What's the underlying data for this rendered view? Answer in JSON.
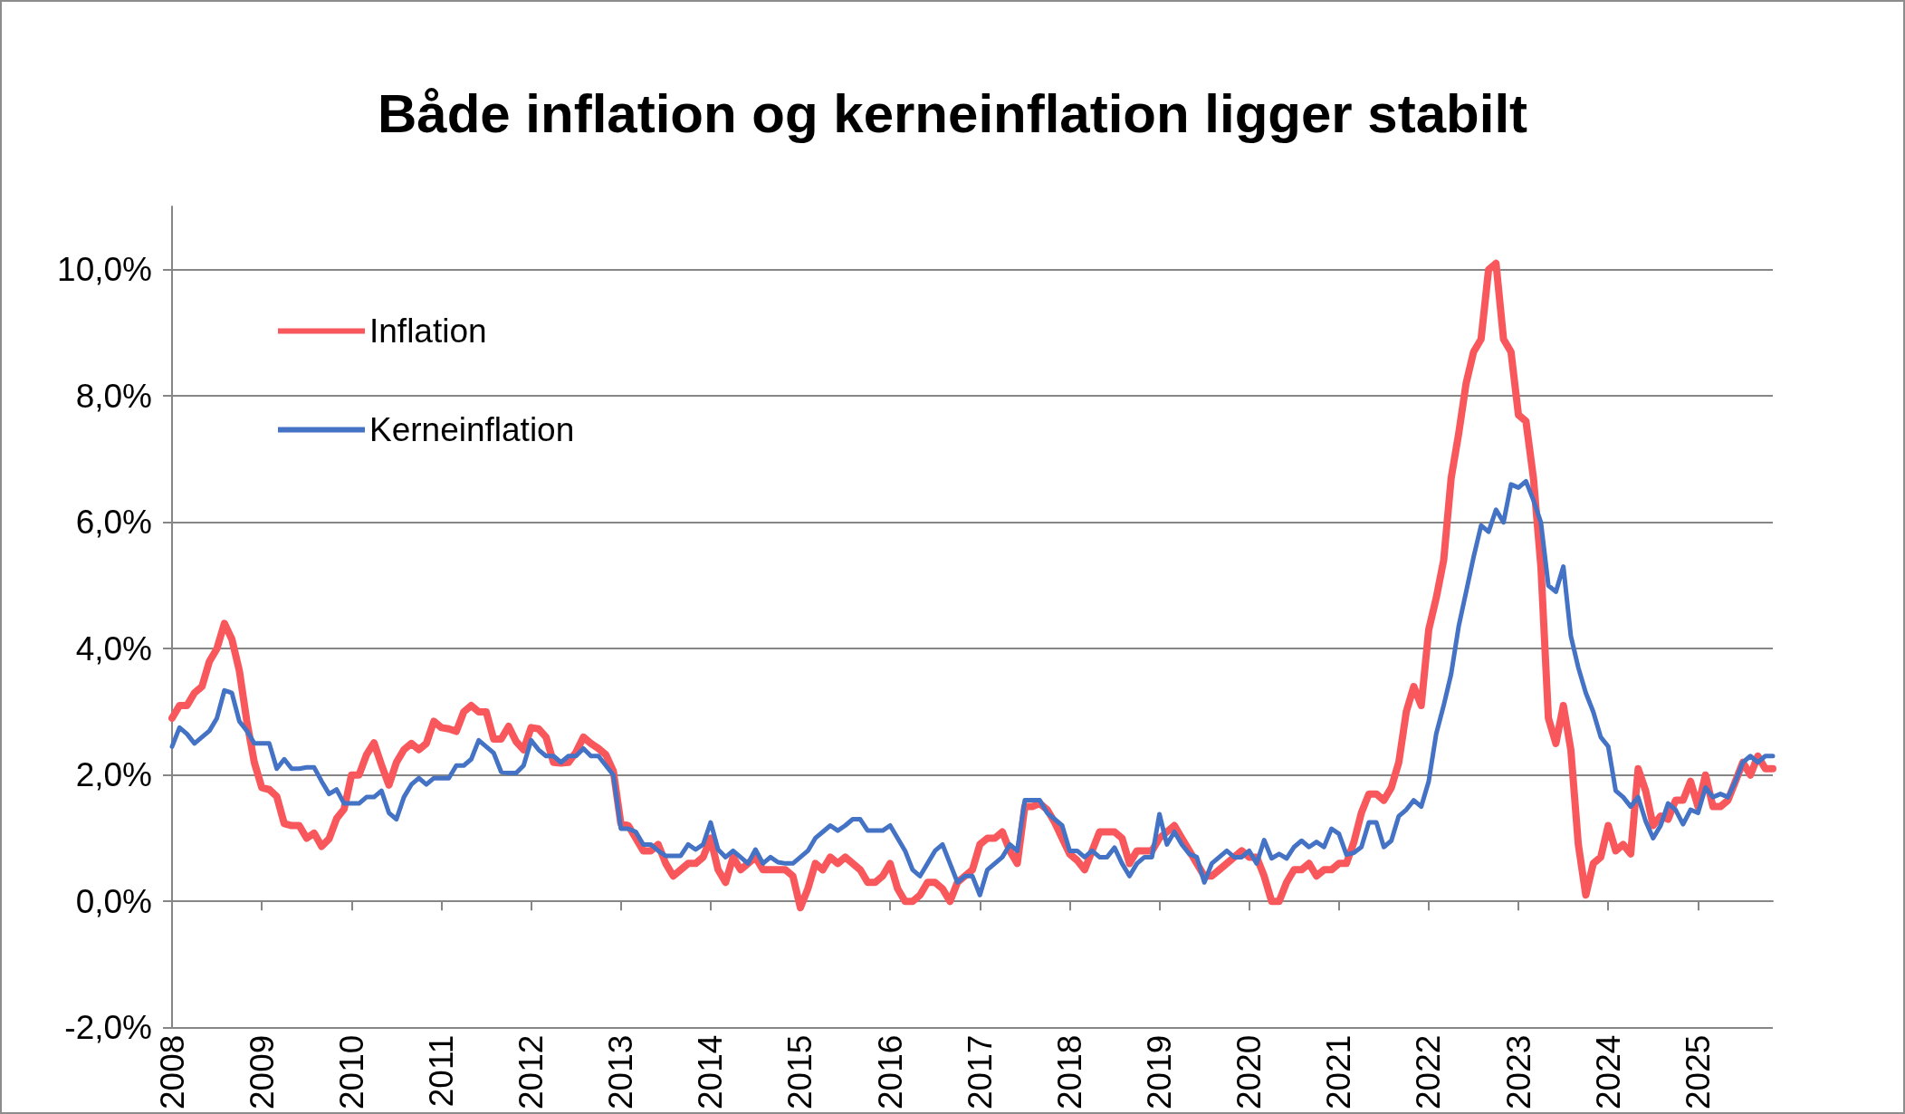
{
  "chart_data": {
    "type": "line",
    "title": "Både inflation og kerneinflation ligger stabilt",
    "categories": [
      "2008",
      null,
      null,
      null,
      null,
      null,
      null,
      null,
      null,
      null,
      null,
      null,
      "2009",
      null,
      null,
      null,
      null,
      null,
      null,
      null,
      null,
      null,
      null,
      null,
      "2010",
      null,
      null,
      null,
      null,
      null,
      null,
      null,
      null,
      null,
      null,
      null,
      "2011",
      null,
      null,
      null,
      null,
      null,
      null,
      null,
      null,
      null,
      null,
      null,
      "2012",
      null,
      null,
      null,
      null,
      null,
      null,
      null,
      null,
      null,
      null,
      null,
      "2013",
      null,
      null,
      null,
      null,
      null,
      null,
      null,
      null,
      null,
      null,
      null,
      "2014",
      null,
      null,
      null,
      null,
      null,
      null,
      null,
      null,
      null,
      null,
      null,
      "2015",
      null,
      null,
      null,
      null,
      null,
      null,
      null,
      null,
      null,
      null,
      null,
      "2016",
      null,
      null,
      null,
      null,
      null,
      null,
      null,
      null,
      null,
      null,
      null,
      "2017",
      null,
      null,
      null,
      null,
      null,
      null,
      null,
      null,
      null,
      null,
      null,
      "2018",
      null,
      null,
      null,
      null,
      null,
      null,
      null,
      null,
      null,
      null,
      null,
      "2019",
      null,
      null,
      null,
      null,
      null,
      null,
      null,
      null,
      null,
      null,
      null,
      "2020",
      null,
      null,
      null,
      null,
      null,
      null,
      null,
      null,
      null,
      null,
      null,
      "2021",
      null,
      null,
      null,
      null,
      null,
      null,
      null,
      null,
      null,
      null,
      null,
      "2022",
      null,
      null,
      null,
      null,
      null,
      null,
      null,
      null,
      null,
      null,
      null,
      "2023",
      null,
      null,
      null,
      null,
      null,
      null,
      null,
      null,
      null,
      null,
      null,
      "2024",
      null,
      null,
      null,
      null,
      null,
      null,
      null,
      null,
      null,
      null,
      null,
      "2025",
      null,
      null,
      null,
      null,
      null,
      null,
      null,
      null,
      null,
      null
    ],
    "series": [
      {
        "name": "Inflation",
        "color": "#f8585c",
        "values": [
          2.9,
          3.1,
          3.1,
          3.3,
          3.4,
          3.8,
          4.0,
          4.4,
          4.15,
          3.65,
          2.85,
          2.2,
          1.8,
          1.77,
          1.66,
          1.23,
          1.2,
          1.2,
          1.0,
          1.08,
          0.87,
          0.99,
          1.31,
          1.46,
          2.0,
          2.0,
          2.32,
          2.51,
          2.16,
          1.84,
          2.2,
          2.4,
          2.5,
          2.4,
          2.5,
          2.85,
          2.75,
          2.73,
          2.69,
          3.0,
          3.1,
          3.0,
          3.0,
          2.57,
          2.57,
          2.77,
          2.53,
          2.4,
          2.75,
          2.73,
          2.6,
          2.2,
          2.19,
          2.2,
          2.36,
          2.6,
          2.5,
          2.42,
          2.32,
          2.06,
          1.23,
          1.2,
          1.0,
          0.8,
          0.8,
          0.9,
          0.6,
          0.4,
          0.5,
          0.6,
          0.6,
          0.7,
          1.0,
          0.5,
          0.3,
          0.7,
          0.5,
          0.6,
          0.7,
          0.5,
          0.5,
          0.5,
          0.5,
          0.4,
          -0.1,
          0.2,
          0.6,
          0.5,
          0.7,
          0.6,
          0.7,
          0.6,
          0.5,
          0.3,
          0.3,
          0.4,
          0.6,
          0.2,
          0.0,
          0.0,
          0.1,
          0.3,
          0.3,
          0.2,
          0.0,
          0.3,
          0.4,
          0.5,
          0.9,
          1.0,
          1.0,
          1.1,
          0.8,
          0.6,
          1.5,
          1.5,
          1.55,
          1.45,
          1.25,
          1.0,
          0.75,
          0.65,
          0.5,
          0.8,
          1.1,
          1.1,
          1.1,
          1.0,
          0.6,
          0.8,
          0.8,
          0.8,
          1.0,
          1.1,
          1.2,
          1.0,
          0.8,
          0.6,
          0.4,
          0.4,
          0.5,
          0.6,
          0.7,
          0.8,
          0.7,
          0.7,
          0.4,
          0.0,
          0.0,
          0.3,
          0.5,
          0.5,
          0.6,
          0.4,
          0.5,
          0.5,
          0.6,
          0.6,
          0.94,
          1.4,
          1.7,
          1.7,
          1.6,
          1.8,
          2.2,
          3.0,
          3.4,
          3.1,
          4.3,
          4.8,
          5.4,
          6.7,
          7.4,
          8.2,
          8.7,
          8.9,
          10.0,
          10.1,
          8.9,
          8.7,
          7.7,
          7.6,
          6.7,
          5.3,
          2.9,
          2.5,
          3.1,
          2.4,
          0.9,
          0.1,
          0.6,
          0.7,
          1.2,
          0.8,
          0.9,
          0.75,
          2.1,
          1.75,
          1.2,
          1.35,
          1.3,
          1.6,
          1.6,
          1.9,
          1.5,
          2.0,
          1.5,
          1.5,
          1.6,
          1.9,
          2.2,
          2.0,
          2.3,
          2.1,
          2.1
        ]
      },
      {
        "name": "Kerneinflation",
        "color": "#4472c4",
        "values": [
          2.45,
          2.75,
          2.65,
          2.5,
          2.6,
          2.7,
          2.9,
          3.34,
          3.3,
          2.85,
          2.7,
          2.5,
          2.5,
          2.5,
          2.1,
          2.25,
          2.1,
          2.1,
          2.12,
          2.12,
          1.9,
          1.7,
          1.77,
          1.55,
          1.55,
          1.55,
          1.65,
          1.65,
          1.75,
          1.4,
          1.3,
          1.65,
          1.85,
          1.95,
          1.85,
          1.95,
          1.95,
          1.95,
          2.15,
          2.15,
          2.25,
          2.55,
          2.45,
          2.35,
          2.05,
          2.03,
          2.03,
          2.15,
          2.55,
          2.4,
          2.3,
          2.3,
          2.2,
          2.3,
          2.3,
          2.42,
          2.3,
          2.3,
          2.15,
          2.0,
          1.15,
          1.15,
          1.1,
          0.9,
          0.9,
          0.8,
          0.72,
          0.72,
          0.72,
          0.9,
          0.82,
          0.9,
          1.25,
          0.82,
          0.7,
          0.8,
          0.7,
          0.6,
          0.82,
          0.6,
          0.7,
          0.62,
          0.6,
          0.6,
          0.7,
          0.8,
          1.0,
          1.1,
          1.2,
          1.12,
          1.2,
          1.3,
          1.3,
          1.12,
          1.12,
          1.12,
          1.2,
          1.0,
          0.8,
          0.5,
          0.4,
          0.6,
          0.8,
          0.9,
          0.6,
          0.3,
          0.4,
          0.4,
          0.1,
          0.5,
          0.6,
          0.7,
          0.9,
          0.8,
          1.6,
          1.6,
          1.6,
          1.4,
          1.3,
          1.2,
          0.8,
          0.8,
          0.7,
          0.8,
          0.7,
          0.7,
          0.85,
          0.6,
          0.4,
          0.6,
          0.7,
          0.7,
          1.38,
          0.9,
          1.1,
          0.9,
          0.75,
          0.7,
          0.3,
          0.6,
          0.7,
          0.8,
          0.7,
          0.7,
          0.8,
          0.6,
          0.97,
          0.68,
          0.75,
          0.68,
          0.86,
          0.96,
          0.86,
          0.94,
          0.86,
          1.15,
          1.07,
          0.74,
          0.77,
          0.86,
          1.25,
          1.25,
          0.86,
          0.96,
          1.35,
          1.45,
          1.6,
          1.5,
          1.9,
          2.65,
          3.1,
          3.6,
          4.35,
          4.9,
          5.45,
          5.95,
          5.85,
          6.2,
          6.0,
          6.6,
          6.55,
          6.65,
          6.35,
          6.0,
          5.0,
          4.9,
          5.3,
          4.2,
          3.7,
          3.3,
          3.0,
          2.6,
          2.45,
          1.75,
          1.65,
          1.5,
          1.65,
          1.27,
          1.0,
          1.2,
          1.55,
          1.45,
          1.22,
          1.45,
          1.4,
          1.8,
          1.65,
          1.7,
          1.65,
          1.9,
          2.2,
          2.3,
          2.2,
          2.3,
          2.3
        ]
      }
    ],
    "ylim": [
      -2,
      11
    ],
    "yticks": [
      {
        "value": -2,
        "label": "-2,0%"
      },
      {
        "value": 0,
        "label": "0,0%"
      },
      {
        "value": 2,
        "label": "2,0%"
      },
      {
        "value": 4,
        "label": "4,0%"
      },
      {
        "value": 6,
        "label": "6,0%"
      },
      {
        "value": 8,
        "label": "8,0%"
      },
      {
        "value": 10,
        "label": "10,0%"
      }
    ],
    "grid": "y",
    "legend": "top left"
  }
}
